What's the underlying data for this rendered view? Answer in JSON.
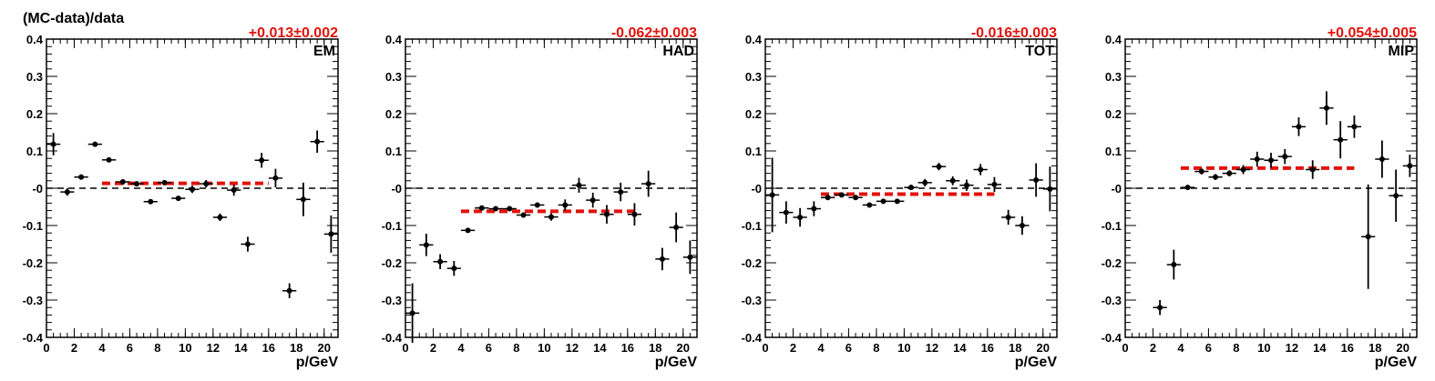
{
  "chart_data": {
    "type": "scatter",
    "ylabel": "(MC-data)/data",
    "xlabel": "p/GeV",
    "ylim": [
      -0.4,
      0.4
    ],
    "xlim": [
      0,
      21
    ],
    "x_ticks": [
      0,
      2,
      4,
      6,
      8,
      10,
      12,
      14,
      16,
      18,
      20
    ],
    "y_ticks": [
      "-0.4",
      "-0.3",
      "-0.2",
      "-0.1",
      "-0",
      "0.1",
      "0.2",
      "0.3",
      "0.4"
    ],
    "reference_line": 0,
    "colors": {
      "points": "#000000",
      "fit": "#e3120b",
      "fit_label": "#e3120b",
      "zero_line": "#000000"
    },
    "panels": [
      {
        "label": "EM",
        "fit_label": "+0.013±0.002",
        "fit": {
          "value": 0.013,
          "x_range": [
            4,
            16
          ]
        },
        "points": [
          {
            "x": 0.5,
            "y": 0.118,
            "err": 0.03
          },
          {
            "x": 1.5,
            "y": -0.01,
            "err": 0.01
          },
          {
            "x": 2.5,
            "y": 0.03,
            "err": 0.007
          },
          {
            "x": 3.5,
            "y": 0.118,
            "err": 0.007
          },
          {
            "x": 4.5,
            "y": 0.076,
            "err": 0.005
          },
          {
            "x": 5.5,
            "y": 0.017,
            "err": 0.005
          },
          {
            "x": 6.5,
            "y": 0.012,
            "err": 0.005
          },
          {
            "x": 7.5,
            "y": -0.036,
            "err": 0.005
          },
          {
            "x": 8.5,
            "y": 0.015,
            "err": 0.005
          },
          {
            "x": 9.5,
            "y": -0.027,
            "err": 0.005
          },
          {
            "x": 10.5,
            "y": -0.003,
            "err": 0.01
          },
          {
            "x": 11.5,
            "y": 0.012,
            "err": 0.01
          },
          {
            "x": 12.5,
            "y": -0.078,
            "err": 0.01
          },
          {
            "x": 13.5,
            "y": -0.005,
            "err": 0.015
          },
          {
            "x": 14.5,
            "y": -0.15,
            "err": 0.02
          },
          {
            "x": 15.5,
            "y": 0.075,
            "err": 0.02
          },
          {
            "x": 16.5,
            "y": 0.027,
            "err": 0.025
          },
          {
            "x": 17.5,
            "y": -0.275,
            "err": 0.02
          },
          {
            "x": 18.5,
            "y": -0.03,
            "err": 0.045
          },
          {
            "x": 19.5,
            "y": 0.125,
            "err": 0.03
          },
          {
            "x": 20.5,
            "y": -0.123,
            "err": 0.05
          }
        ]
      },
      {
        "label": "HAD",
        "fit_label": "-0.062±0.003",
        "fit": {
          "value": -0.062,
          "x_range": [
            4,
            16.5
          ]
        },
        "points": [
          {
            "x": 0.5,
            "y": -0.335,
            "err": 0.08
          },
          {
            "x": 1.5,
            "y": -0.152,
            "err": 0.03
          },
          {
            "x": 2.5,
            "y": -0.197,
            "err": 0.02
          },
          {
            "x": 3.5,
            "y": -0.215,
            "err": 0.02
          },
          {
            "x": 4.5,
            "y": -0.113,
            "err": 0.005
          },
          {
            "x": 5.5,
            "y": -0.053,
            "err": 0.005
          },
          {
            "x": 6.5,
            "y": -0.055,
            "err": 0.005
          },
          {
            "x": 7.5,
            "y": -0.055,
            "err": 0.005
          },
          {
            "x": 8.5,
            "y": -0.072,
            "err": 0.007
          },
          {
            "x": 9.5,
            "y": -0.045,
            "err": 0.007
          },
          {
            "x": 10.5,
            "y": -0.077,
            "err": 0.01
          },
          {
            "x": 11.5,
            "y": -0.045,
            "err": 0.015
          },
          {
            "x": 12.5,
            "y": 0.008,
            "err": 0.02
          },
          {
            "x": 13.5,
            "y": -0.032,
            "err": 0.02
          },
          {
            "x": 14.5,
            "y": -0.07,
            "err": 0.025
          },
          {
            "x": 15.5,
            "y": -0.01,
            "err": 0.025
          },
          {
            "x": 16.5,
            "y": -0.07,
            "err": 0.03
          },
          {
            "x": 17.5,
            "y": 0.012,
            "err": 0.035
          },
          {
            "x": 18.5,
            "y": -0.19,
            "err": 0.03
          },
          {
            "x": 19.5,
            "y": -0.105,
            "err": 0.04
          },
          {
            "x": 20.5,
            "y": -0.185,
            "err": 0.045
          }
        ]
      },
      {
        "label": "TOT",
        "fit_label": "-0.016±0.003",
        "fit": {
          "value": -0.016,
          "x_range": [
            4,
            16.5
          ]
        },
        "points": [
          {
            "x": 0.5,
            "y": -0.018,
            "err": 0.1
          },
          {
            "x": 1.5,
            "y": -0.065,
            "err": 0.03
          },
          {
            "x": 2.5,
            "y": -0.078,
            "err": 0.025
          },
          {
            "x": 3.5,
            "y": -0.055,
            "err": 0.02
          },
          {
            "x": 4.5,
            "y": -0.025,
            "err": 0.005
          },
          {
            "x": 5.5,
            "y": -0.018,
            "err": 0.005
          },
          {
            "x": 6.5,
            "y": -0.025,
            "err": 0.005
          },
          {
            "x": 7.5,
            "y": -0.045,
            "err": 0.005
          },
          {
            "x": 8.5,
            "y": -0.035,
            "err": 0.005
          },
          {
            "x": 9.5,
            "y": -0.035,
            "err": 0.005
          },
          {
            "x": 10.5,
            "y": 0.002,
            "err": 0.007
          },
          {
            "x": 11.5,
            "y": 0.015,
            "err": 0.01
          },
          {
            "x": 12.5,
            "y": 0.058,
            "err": 0.01
          },
          {
            "x": 13.5,
            "y": 0.02,
            "err": 0.012
          },
          {
            "x": 14.5,
            "y": 0.008,
            "err": 0.015
          },
          {
            "x": 15.5,
            "y": 0.05,
            "err": 0.015
          },
          {
            "x": 16.5,
            "y": 0.01,
            "err": 0.02
          },
          {
            "x": 17.5,
            "y": -0.078,
            "err": 0.02
          },
          {
            "x": 18.5,
            "y": -0.1,
            "err": 0.025
          },
          {
            "x": 19.5,
            "y": 0.022,
            "err": 0.045
          },
          {
            "x": 20.5,
            "y": -0.002,
            "err": 0.06
          }
        ]
      },
      {
        "label": "MIP",
        "fit_label": "+0.054±0.005",
        "fit": {
          "value": 0.054,
          "x_range": [
            4,
            16.5
          ]
        },
        "points": [
          {
            "x": 2.5,
            "y": -0.32,
            "err": 0.02
          },
          {
            "x": 3.5,
            "y": -0.205,
            "err": 0.04
          },
          {
            "x": 4.5,
            "y": 0.002,
            "err": 0.005
          },
          {
            "x": 5.5,
            "y": 0.045,
            "err": 0.008
          },
          {
            "x": 6.5,
            "y": 0.03,
            "err": 0.008
          },
          {
            "x": 7.5,
            "y": 0.04,
            "err": 0.008
          },
          {
            "x": 8.5,
            "y": 0.05,
            "err": 0.012
          },
          {
            "x": 9.5,
            "y": 0.078,
            "err": 0.02
          },
          {
            "x": 10.5,
            "y": 0.075,
            "err": 0.02
          },
          {
            "x": 11.5,
            "y": 0.085,
            "err": 0.02
          },
          {
            "x": 12.5,
            "y": 0.165,
            "err": 0.025
          },
          {
            "x": 13.5,
            "y": 0.05,
            "err": 0.025
          },
          {
            "x": 14.5,
            "y": 0.215,
            "err": 0.045
          },
          {
            "x": 15.5,
            "y": 0.13,
            "err": 0.05
          },
          {
            "x": 16.5,
            "y": 0.165,
            "err": 0.03
          },
          {
            "x": 17.5,
            "y": -0.13,
            "err": 0.14
          },
          {
            "x": 18.5,
            "y": 0.078,
            "err": 0.05
          },
          {
            "x": 19.5,
            "y": -0.02,
            "err": 0.07
          },
          {
            "x": 20.5,
            "y": 0.06,
            "err": 0.03
          }
        ]
      }
    ]
  }
}
